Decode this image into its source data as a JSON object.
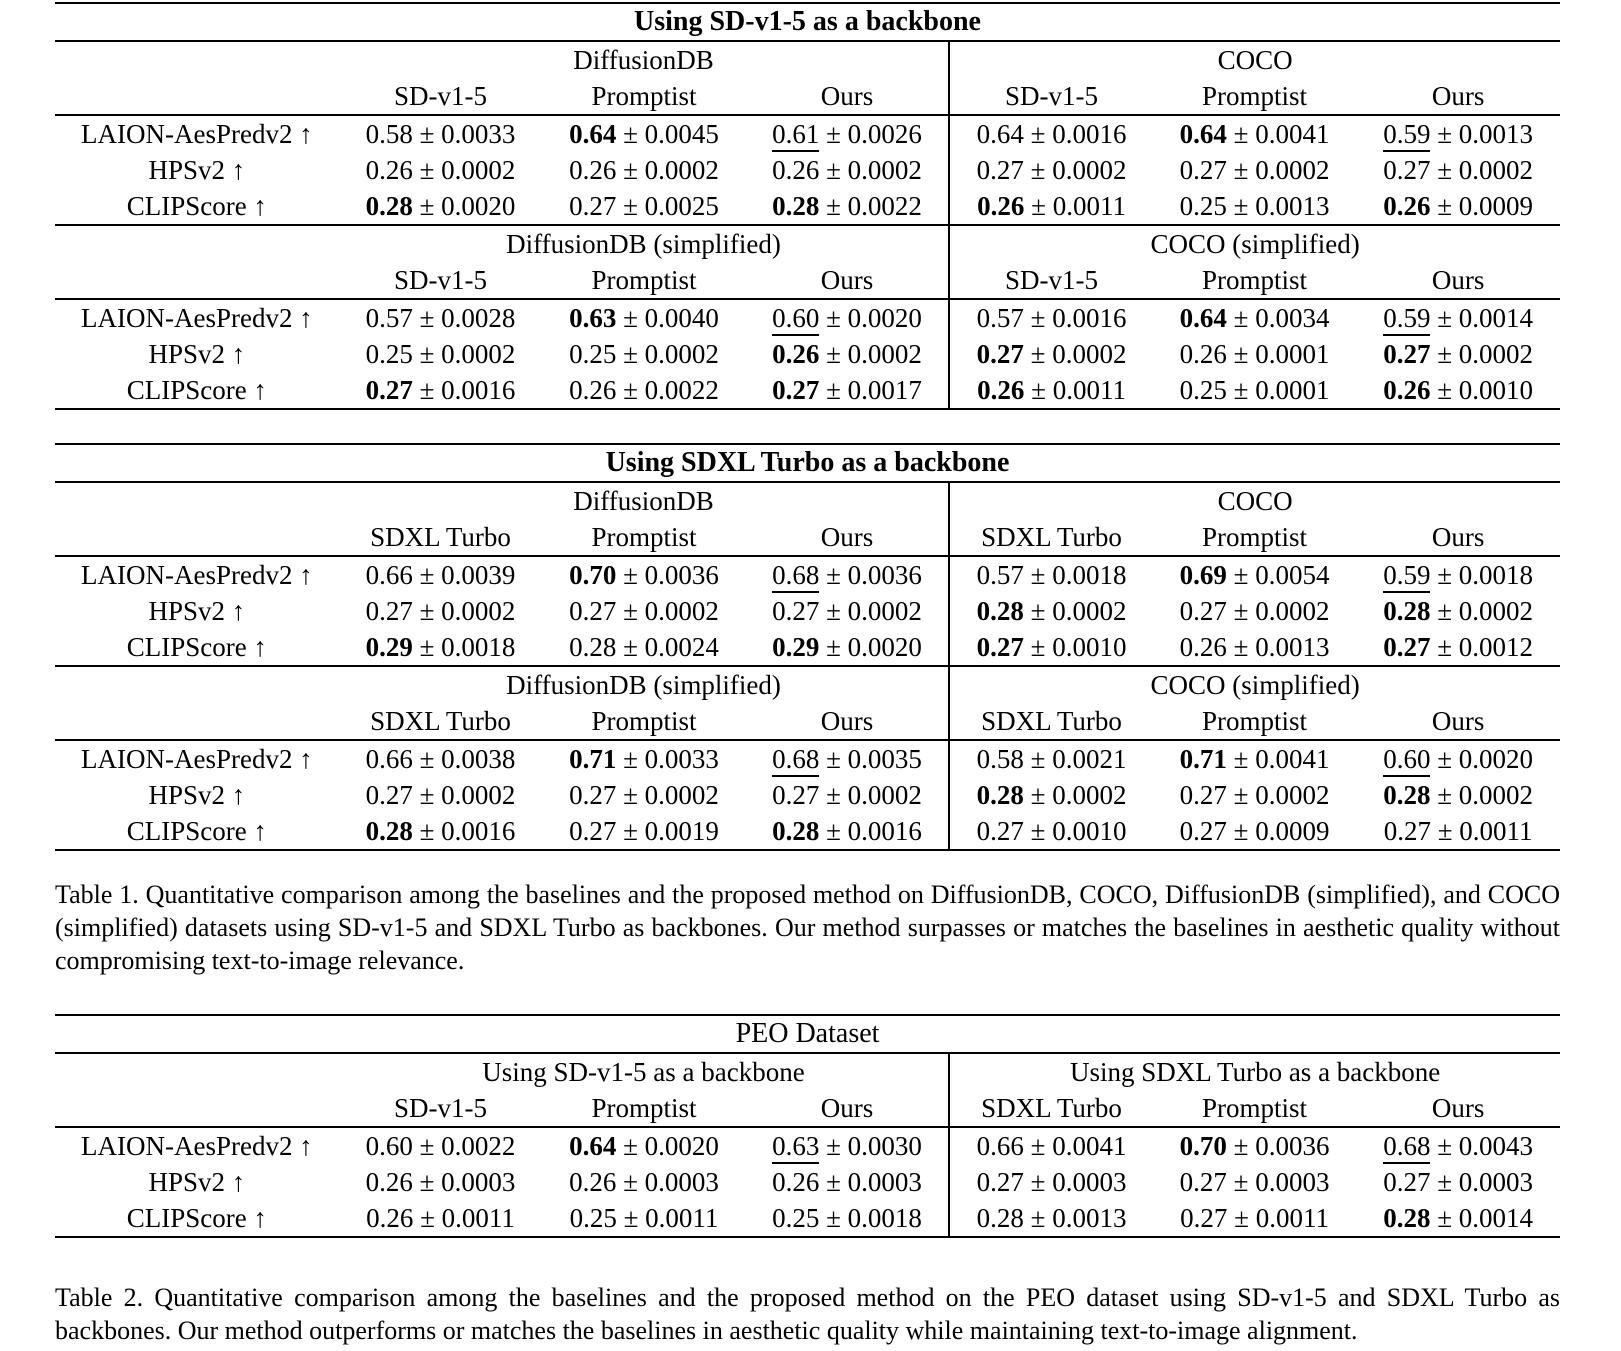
{
  "tables": [
    {
      "id": "table-1a",
      "title": "Using SD-v1-5 as a backbone",
      "title_bold": true,
      "blocks": [
        {
          "left_dataset": "DiffusionDB",
          "right_dataset": "COCO",
          "left_models": [
            "SD-v1-5",
            "Promptist",
            "Ours"
          ],
          "right_models": [
            "SD-v1-5",
            "Promptist",
            "Ours"
          ],
          "rows": [
            {
              "metric": "LAION-AesPredv2 ↑",
              "values": [
                {
                  "mean": "0.58",
                  "err": "0.0033",
                  "emph": "n"
                },
                {
                  "mean": "0.64",
                  "err": "0.0045",
                  "emph": "b"
                },
                {
                  "mean": "0.61",
                  "err": "0.0026",
                  "emph": "u"
                },
                {
                  "mean": "0.64",
                  "err": "0.0016",
                  "emph": "n"
                },
                {
                  "mean": "0.64",
                  "err": "0.0041",
                  "emph": "b"
                },
                {
                  "mean": "0.59",
                  "err": "0.0013",
                  "emph": "u"
                }
              ]
            },
            {
              "metric": "HPSv2 ↑",
              "values": [
                {
                  "mean": "0.26",
                  "err": "0.0002",
                  "emph": "n"
                },
                {
                  "mean": "0.26",
                  "err": "0.0002",
                  "emph": "n"
                },
                {
                  "mean": "0.26",
                  "err": "0.0002",
                  "emph": "n"
                },
                {
                  "mean": "0.27",
                  "err": "0.0002",
                  "emph": "n"
                },
                {
                  "mean": "0.27",
                  "err": "0.0002",
                  "emph": "n"
                },
                {
                  "mean": "0.27",
                  "err": "0.0002",
                  "emph": "n"
                }
              ]
            },
            {
              "metric": "CLIPScore ↑",
              "values": [
                {
                  "mean": "0.28",
                  "err": "0.0020",
                  "emph": "b"
                },
                {
                  "mean": "0.27",
                  "err": "0.0025",
                  "emph": "n"
                },
                {
                  "mean": "0.28",
                  "err": "0.0022",
                  "emph": "b"
                },
                {
                  "mean": "0.26",
                  "err": "0.0011",
                  "emph": "b"
                },
                {
                  "mean": "0.25",
                  "err": "0.0013",
                  "emph": "n"
                },
                {
                  "mean": "0.26",
                  "err": "0.0009",
                  "emph": "b"
                }
              ]
            }
          ]
        },
        {
          "left_dataset": "DiffusionDB (simplified)",
          "right_dataset": "COCO (simplified)",
          "left_models": [
            "SD-v1-5",
            "Promptist",
            "Ours"
          ],
          "right_models": [
            "SD-v1-5",
            "Promptist",
            "Ours"
          ],
          "rows": [
            {
              "metric": "LAION-AesPredv2 ↑",
              "values": [
                {
                  "mean": "0.57",
                  "err": "0.0028",
                  "emph": "n"
                },
                {
                  "mean": "0.63",
                  "err": "0.0040",
                  "emph": "b"
                },
                {
                  "mean": "0.60",
                  "err": "0.0020",
                  "emph": "u"
                },
                {
                  "mean": "0.57",
                  "err": "0.0016",
                  "emph": "n"
                },
                {
                  "mean": "0.64",
                  "err": "0.0034",
                  "emph": "b"
                },
                {
                  "mean": "0.59",
                  "err": "0.0014",
                  "emph": "u"
                }
              ]
            },
            {
              "metric": "HPSv2 ↑",
              "values": [
                {
                  "mean": "0.25",
                  "err": "0.0002",
                  "emph": "n"
                },
                {
                  "mean": "0.25",
                  "err": "0.0002",
                  "emph": "n"
                },
                {
                  "mean": "0.26",
                  "err": "0.0002",
                  "emph": "b"
                },
                {
                  "mean": "0.27",
                  "err": "0.0002",
                  "emph": "b"
                },
                {
                  "mean": "0.26",
                  "err": "0.0001",
                  "emph": "n"
                },
                {
                  "mean": "0.27",
                  "err": "0.0002",
                  "emph": "b"
                }
              ]
            },
            {
              "metric": "CLIPScore ↑",
              "values": [
                {
                  "mean": "0.27",
                  "err": "0.0016",
                  "emph": "b"
                },
                {
                  "mean": "0.26",
                  "err": "0.0022",
                  "emph": "n"
                },
                {
                  "mean": "0.27",
                  "err": "0.0017",
                  "emph": "b"
                },
                {
                  "mean": "0.26",
                  "err": "0.0011",
                  "emph": "b"
                },
                {
                  "mean": "0.25",
                  "err": "0.0001",
                  "emph": "n"
                },
                {
                  "mean": "0.26",
                  "err": "0.0010",
                  "emph": "b"
                }
              ]
            }
          ]
        }
      ]
    },
    {
      "id": "table-1b",
      "title": "Using SDXL Turbo as a backbone",
      "title_bold": true,
      "blocks": [
        {
          "left_dataset": "DiffusionDB",
          "right_dataset": "COCO",
          "left_models": [
            "SDXL Turbo",
            "Promptist",
            "Ours"
          ],
          "right_models": [
            "SDXL Turbo",
            "Promptist",
            "Ours"
          ],
          "rows": [
            {
              "metric": "LAION-AesPredv2 ↑",
              "values": [
                {
                  "mean": "0.66",
                  "err": "0.0039",
                  "emph": "n"
                },
                {
                  "mean": "0.70",
                  "err": "0.0036",
                  "emph": "b"
                },
                {
                  "mean": "0.68",
                  "err": "0.0036",
                  "emph": "u"
                },
                {
                  "mean": "0.57",
                  "err": "0.0018",
                  "emph": "n"
                },
                {
                  "mean": "0.69",
                  "err": "0.0054",
                  "emph": "b"
                },
                {
                  "mean": "0.59",
                  "err": "0.0018",
                  "emph": "u"
                }
              ]
            },
            {
              "metric": "HPSv2 ↑",
              "values": [
                {
                  "mean": "0.27",
                  "err": "0.0002",
                  "emph": "n"
                },
                {
                  "mean": "0.27",
                  "err": "0.0002",
                  "emph": "n"
                },
                {
                  "mean": "0.27",
                  "err": "0.0002",
                  "emph": "n"
                },
                {
                  "mean": "0.28",
                  "err": "0.0002",
                  "emph": "b"
                },
                {
                  "mean": "0.27",
                  "err": "0.0002",
                  "emph": "n"
                },
                {
                  "mean": "0.28",
                  "err": "0.0002",
                  "emph": "b"
                }
              ]
            },
            {
              "metric": "CLIPScore ↑",
              "values": [
                {
                  "mean": "0.29",
                  "err": "0.0018",
                  "emph": "b"
                },
                {
                  "mean": "0.28",
                  "err": "0.0024",
                  "emph": "n"
                },
                {
                  "mean": "0.29",
                  "err": "0.0020",
                  "emph": "b"
                },
                {
                  "mean": "0.27",
                  "err": "0.0010",
                  "emph": "b"
                },
                {
                  "mean": "0.26",
                  "err": "0.0013",
                  "emph": "n"
                },
                {
                  "mean": "0.27",
                  "err": "0.0012",
                  "emph": "b"
                }
              ]
            }
          ]
        },
        {
          "left_dataset": "DiffusionDB (simplified)",
          "right_dataset": "COCO (simplified)",
          "left_models": [
            "SDXL Turbo",
            "Promptist",
            "Ours"
          ],
          "right_models": [
            "SDXL Turbo",
            "Promptist",
            "Ours"
          ],
          "rows": [
            {
              "metric": "LAION-AesPredv2 ↑",
              "values": [
                {
                  "mean": "0.66",
                  "err": "0.0038",
                  "emph": "n"
                },
                {
                  "mean": "0.71",
                  "err": "0.0033",
                  "emph": "b"
                },
                {
                  "mean": "0.68",
                  "err": "0.0035",
                  "emph": "u"
                },
                {
                  "mean": "0.58",
                  "err": "0.0021",
                  "emph": "n"
                },
                {
                  "mean": "0.71",
                  "err": "0.0041",
                  "emph": "b"
                },
                {
                  "mean": "0.60",
                  "err": "0.0020",
                  "emph": "u"
                }
              ]
            },
            {
              "metric": "HPSv2 ↑",
              "values": [
                {
                  "mean": "0.27",
                  "err": "0.0002",
                  "emph": "n"
                },
                {
                  "mean": "0.27",
                  "err": "0.0002",
                  "emph": "n"
                },
                {
                  "mean": "0.27",
                  "err": "0.0002",
                  "emph": "n"
                },
                {
                  "mean": "0.28",
                  "err": "0.0002",
                  "emph": "b"
                },
                {
                  "mean": "0.27",
                  "err": "0.0002",
                  "emph": "n"
                },
                {
                  "mean": "0.28",
                  "err": "0.0002",
                  "emph": "b"
                }
              ]
            },
            {
              "metric": "CLIPScore ↑",
              "values": [
                {
                  "mean": "0.28",
                  "err": "0.0016",
                  "emph": "b"
                },
                {
                  "mean": "0.27",
                  "err": "0.0019",
                  "emph": "n"
                },
                {
                  "mean": "0.28",
                  "err": "0.0016",
                  "emph": "b"
                },
                {
                  "mean": "0.27",
                  "err": "0.0010",
                  "emph": "n"
                },
                {
                  "mean": "0.27",
                  "err": "0.0009",
                  "emph": "n"
                },
                {
                  "mean": "0.27",
                  "err": "0.0011",
                  "emph": "n"
                }
              ]
            }
          ]
        }
      ]
    },
    {
      "id": "table-2",
      "title": "PEO Dataset",
      "title_bold": false,
      "blocks": [
        {
          "left_dataset": "Using SD-v1-5 as a backbone",
          "right_dataset": "Using SDXL Turbo as a backbone",
          "left_models": [
            "SD-v1-5",
            "Promptist",
            "Ours"
          ],
          "right_models": [
            "SDXL Turbo",
            "Promptist",
            "Ours"
          ],
          "rows": [
            {
              "metric": "LAION-AesPredv2 ↑",
              "values": [
                {
                  "mean": "0.60",
                  "err": "0.0022",
                  "emph": "n"
                },
                {
                  "mean": "0.64",
                  "err": "0.0020",
                  "emph": "b"
                },
                {
                  "mean": "0.63",
                  "err": "0.0030",
                  "emph": "u"
                },
                {
                  "mean": "0.66",
                  "err": "0.0041",
                  "emph": "n"
                },
                {
                  "mean": "0.70",
                  "err": "0.0036",
                  "emph": "b"
                },
                {
                  "mean": "0.68",
                  "err": "0.0043",
                  "emph": "u"
                }
              ]
            },
            {
              "metric": "HPSv2 ↑",
              "values": [
                {
                  "mean": "0.26",
                  "err": "0.0003",
                  "emph": "n"
                },
                {
                  "mean": "0.26",
                  "err": "0.0003",
                  "emph": "n"
                },
                {
                  "mean": "0.26",
                  "err": "0.0003",
                  "emph": "n"
                },
                {
                  "mean": "0.27",
                  "err": "0.0003",
                  "emph": "n"
                },
                {
                  "mean": "0.27",
                  "err": "0.0003",
                  "emph": "n"
                },
                {
                  "mean": "0.27",
                  "err": "0.0003",
                  "emph": "n"
                }
              ]
            },
            {
              "metric": "CLIPScore ↑",
              "values": [
                {
                  "mean": "0.26",
                  "err": "0.0011",
                  "emph": "n"
                },
                {
                  "mean": "0.25",
                  "err": "0.0011",
                  "emph": "n"
                },
                {
                  "mean": "0.25",
                  "err": "0.0018",
                  "emph": "n"
                },
                {
                  "mean": "0.28",
                  "err": "0.0013",
                  "emph": "n"
                },
                {
                  "mean": "0.27",
                  "err": "0.0011",
                  "emph": "n"
                },
                {
                  "mean": "0.28",
                  "err": "0.0014",
                  "emph": "b"
                }
              ]
            }
          ]
        }
      ]
    }
  ],
  "captions": {
    "table1": "Table 1. Quantitative comparison among the baselines and the proposed method on DiffusionDB, COCO, DiffusionDB (simplified), and COCO (simplified) datasets using SD-v1-5 and SDXL Turbo as backbones. Our method surpasses or matches the baselines in aesthetic quality without compromising text-to-image relevance.",
    "table2": "Table 2. Quantitative comparison among the baselines and the proposed method on the PEO dataset using SD-v1-5 and SDXL Turbo as backbones. Our method outperforms or matches the baselines in aesthetic quality while maintaining text-to-image alignment."
  },
  "plus_minus_symbol": "±"
}
